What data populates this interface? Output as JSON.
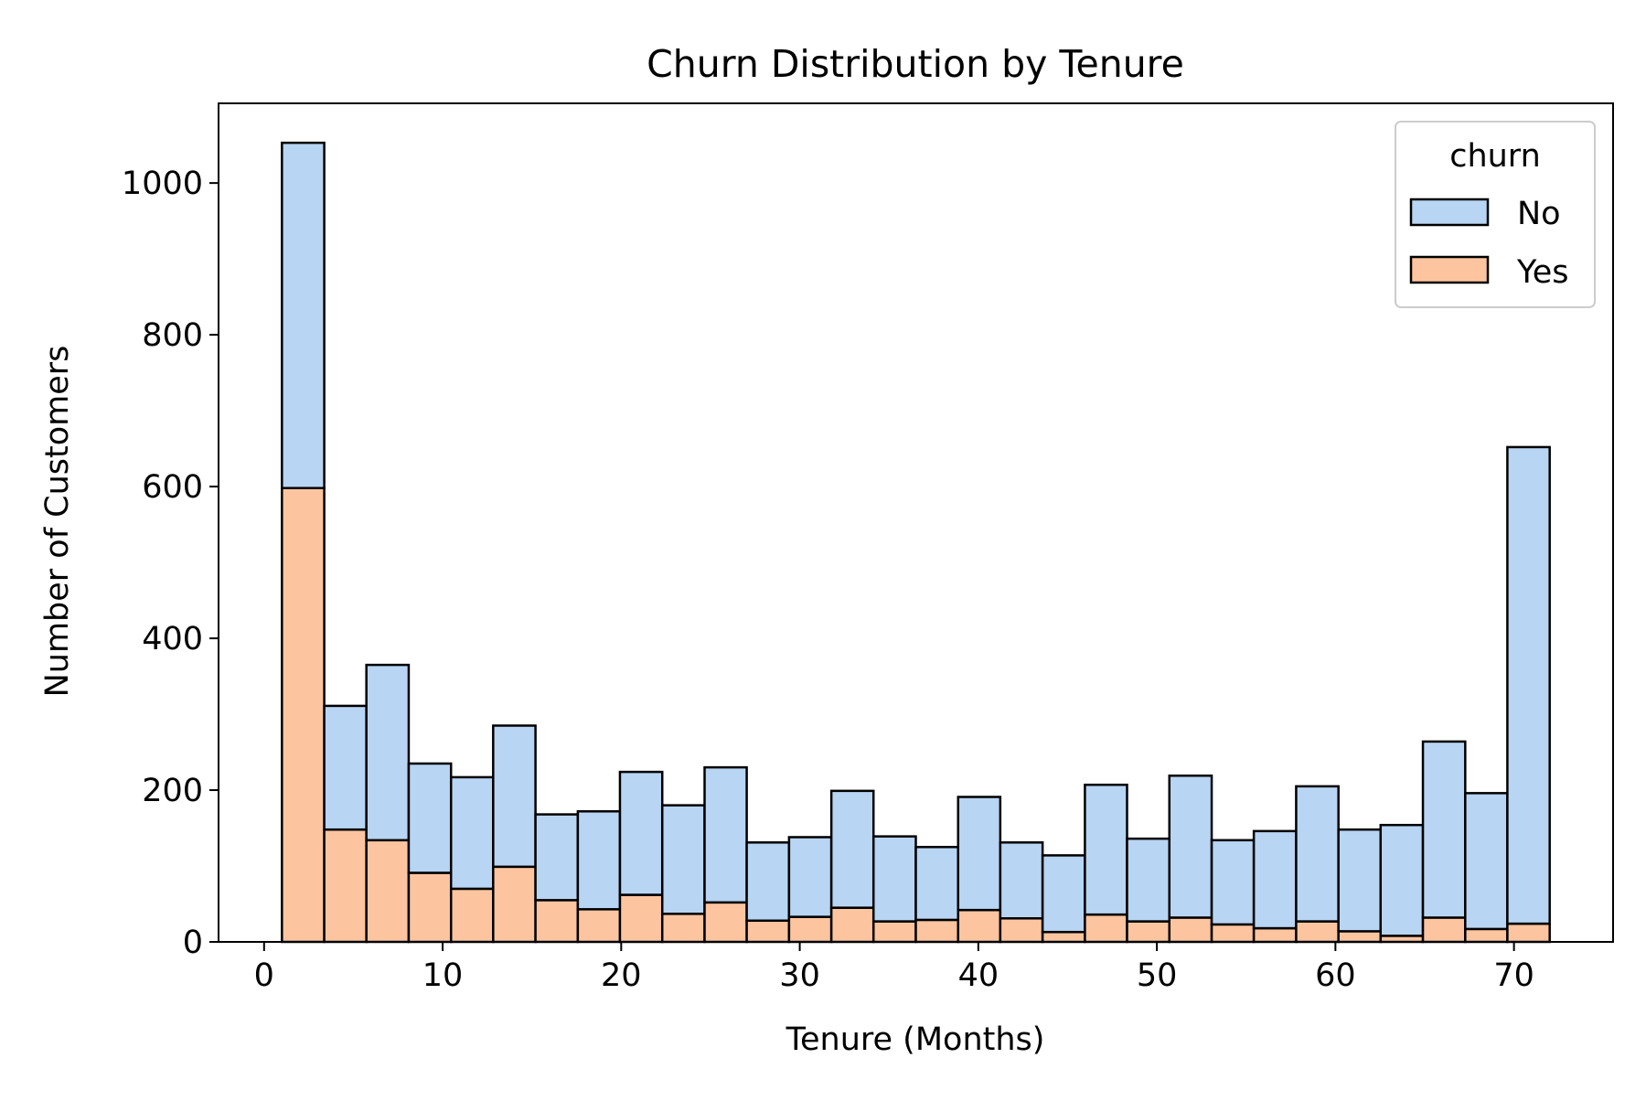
{
  "chart_data": {
    "type": "bar",
    "stacked": true,
    "title": "Churn Distribution by Tenure",
    "xlabel": "Tenure (Months)",
    "ylabel": "Number of Customers",
    "xlim": [
      -2.55,
      75.55
    ],
    "ylim": [
      0,
      1105
    ],
    "x_ticks": [
      0,
      10,
      20,
      30,
      40,
      50,
      60,
      70
    ],
    "y_ticks": [
      0,
      200,
      400,
      600,
      800,
      1000
    ],
    "grid": false,
    "legend": {
      "title": "churn",
      "position": "top-right"
    },
    "bins": [
      [
        1,
        3.37
      ],
      [
        3.37,
        5.73
      ],
      [
        5.73,
        8.1
      ],
      [
        8.1,
        10.47
      ],
      [
        10.47,
        12.83
      ],
      [
        12.83,
        15.2
      ],
      [
        15.2,
        17.57
      ],
      [
        17.57,
        19.93
      ],
      [
        19.93,
        22.3
      ],
      [
        22.3,
        24.67
      ],
      [
        24.67,
        27.03
      ],
      [
        27.03,
        29.4
      ],
      [
        29.4,
        31.77
      ],
      [
        31.77,
        34.13
      ],
      [
        34.13,
        36.5
      ],
      [
        36.5,
        38.87
      ],
      [
        38.87,
        41.23
      ],
      [
        41.23,
        43.6
      ],
      [
        43.6,
        45.97
      ],
      [
        45.97,
        48.33
      ],
      [
        48.33,
        50.7
      ],
      [
        50.7,
        53.07
      ],
      [
        53.07,
        55.43
      ],
      [
        55.43,
        57.8
      ],
      [
        57.8,
        60.17
      ],
      [
        60.17,
        62.53
      ],
      [
        62.53,
        64.9
      ],
      [
        64.9,
        67.27
      ],
      [
        67.27,
        69.63
      ],
      [
        69.63,
        72
      ]
    ],
    "series": [
      {
        "name": "No",
        "color": "#b8d5f3",
        "values": [
          455,
          163,
          231,
          144,
          147,
          186,
          113,
          129,
          162,
          143,
          178,
          103,
          105,
          154,
          112,
          96,
          149,
          100,
          101,
          171,
          109,
          187,
          111,
          128,
          178,
          134,
          146,
          232,
          179,
          628
        ]
      },
      {
        "name": "Yes",
        "color": "#fdc59f",
        "values": [
          598,
          148,
          134,
          91,
          70,
          99,
          55,
          43,
          62,
          37,
          52,
          28,
          33,
          45,
          27,
          29,
          42,
          31,
          13,
          36,
          27,
          32,
          23,
          18,
          27,
          14,
          8,
          32,
          17,
          24
        ]
      }
    ]
  }
}
